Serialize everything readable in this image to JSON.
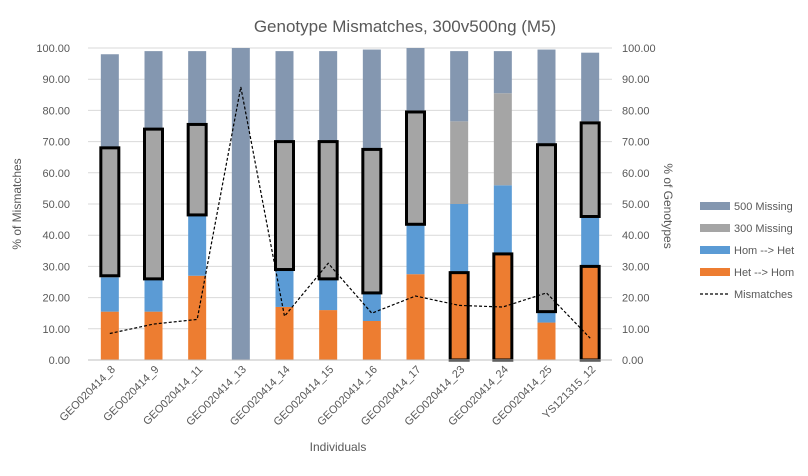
{
  "chart_data": {
    "type": "bar",
    "stacked": true,
    "title": "Genotype Mismatches, 300v500ng (M5)",
    "xlabel": "Individuals",
    "ylabel_left": "% of Mismatches",
    "ylabel_right": "% of Genotypes",
    "ylim": [
      0,
      100
    ],
    "yticks": [
      "0.00",
      "10.00",
      "20.00",
      "30.00",
      "40.00",
      "50.00",
      "60.00",
      "70.00",
      "80.00",
      "90.00",
      "100.00"
    ],
    "grid": true,
    "legend_position": "right",
    "categories": [
      "GEO020414_8",
      "GEO020414_9",
      "GEO020414_11",
      "GEO020414_13",
      "GEO020414_14",
      "GEO020414_15",
      "GEO020414_16",
      "GEO020414_17",
      "GEO020414_23",
      "GEO020414_24",
      "GEO020414_25",
      "YS121315_12"
    ],
    "series": [
      {
        "name": "Het --> Hom",
        "color": "#ED7D31",
        "values": [
          15.5,
          15.5,
          27,
          0,
          17,
          16,
          12.5,
          27.5,
          28,
          34,
          12,
          30
        ]
      },
      {
        "name": "Hom --> Het",
        "color": "#5B9BD5",
        "values": [
          11,
          10.5,
          19.5,
          0,
          12,
          10,
          9,
          16,
          22,
          22,
          3.5,
          16.5
        ]
      },
      {
        "name": "300 Missing",
        "color": "#A5A5A5",
        "values": [
          41.5,
          48,
          29,
          0,
          41,
          44,
          46,
          36.5,
          26.5,
          29.5,
          53.5,
          30
        ]
      },
      {
        "name": "500 Missing",
        "color": "#8497B0",
        "values": [
          30,
          25,
          23.5,
          100,
          29,
          29,
          32,
          20,
          22.5,
          13.5,
          30.5,
          22
        ]
      }
    ],
    "highlight_boxes": [
      {
        "category": "GEO020414_8",
        "from": 27,
        "to": 68
      },
      {
        "category": "GEO020414_9",
        "from": 26,
        "to": 74
      },
      {
        "category": "GEO020414_11",
        "from": 46.5,
        "to": 75.5
      },
      {
        "category": "GEO020414_14",
        "from": 29,
        "to": 70
      },
      {
        "category": "GEO020414_15",
        "from": 26,
        "to": 70
      },
      {
        "category": "GEO020414_16",
        "from": 21.5,
        "to": 67.5
      },
      {
        "category": "GEO020414_17",
        "from": 43.5,
        "to": 79.5
      },
      {
        "category": "GEO020414_23",
        "from": 0,
        "to": 28
      },
      {
        "category": "GEO020414_24",
        "from": 0,
        "to": 34
      },
      {
        "category": "GEO020414_25",
        "from": 15.5,
        "to": 69
      },
      {
        "category": "YS121315_12",
        "from": 0,
        "to": 30
      },
      {
        "category": "YS121315_12",
        "from": 46,
        "to": 76
      }
    ],
    "line_series": {
      "name": "Mismatches",
      "style": "dashed",
      "color": "#000000",
      "values": [
        8.5,
        11.5,
        13,
        87.5,
        14,
        31,
        15,
        20.5,
        17.5,
        17,
        21.5,
        7
      ]
    }
  }
}
